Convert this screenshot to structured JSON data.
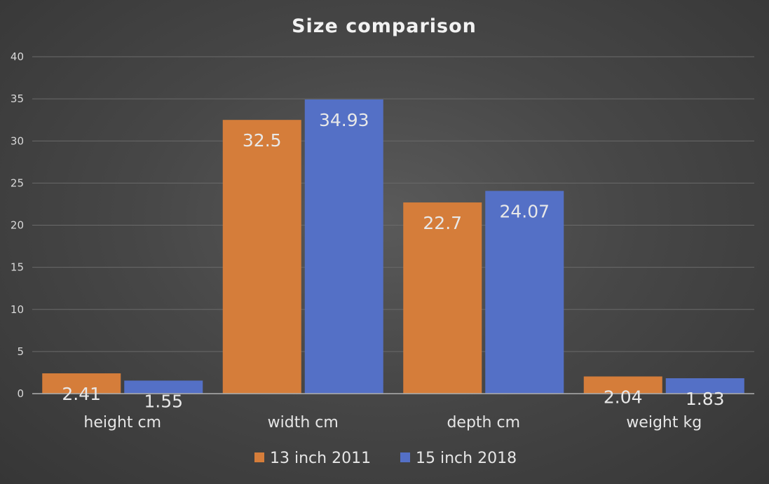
{
  "chart_data": {
    "type": "bar",
    "title": "Size comparison",
    "xlabel": "",
    "ylabel": "",
    "categories": [
      "height cm",
      "width cm",
      "depth cm",
      "weight kg"
    ],
    "series": [
      {
        "name": "13 inch 2011",
        "color": "#d57d3a",
        "values": [
          2.41,
          32.5,
          22.7,
          2.04
        ]
      },
      {
        "name": "15 inch 2018",
        "color": "#5470c6",
        "values": [
          1.55,
          34.93,
          24.07,
          1.83
        ]
      }
    ],
    "ylim": [
      0,
      40
    ],
    "yticks": [
      0,
      5,
      10,
      15,
      20,
      25,
      30,
      35,
      40
    ],
    "grid": true,
    "legend": "bottom",
    "data_labels": true,
    "background": "#474747"
  }
}
